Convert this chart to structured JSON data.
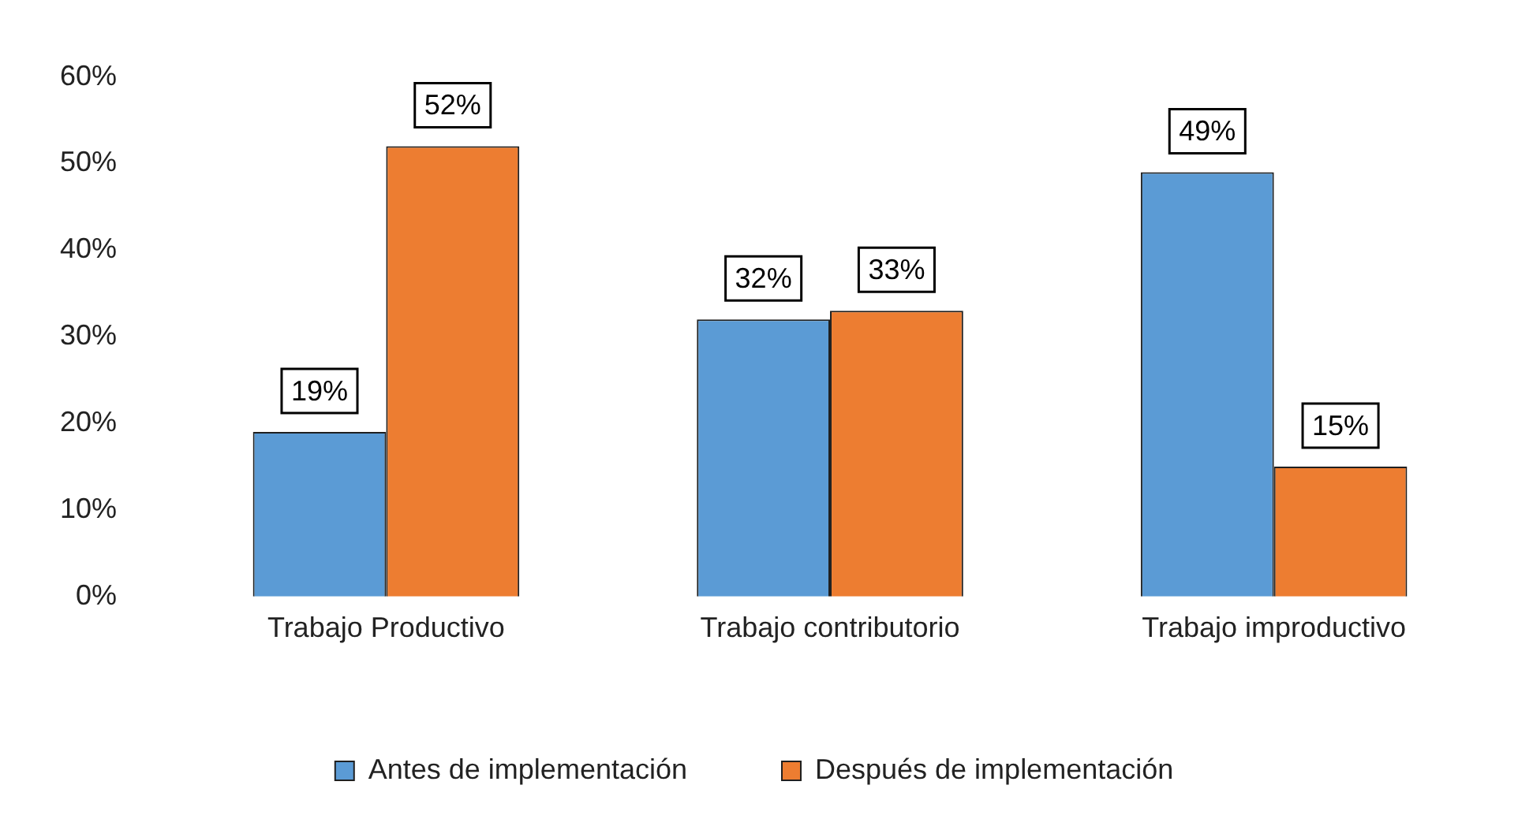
{
  "chart_data": {
    "type": "bar",
    "categories": [
      "Trabajo Productivo",
      "Trabajo contributorio",
      "Trabajo improductivo"
    ],
    "series": [
      {
        "name": "Antes de implementación",
        "color": "#5b9bd5",
        "values": [
          19,
          32,
          49
        ],
        "value_labels": [
          "19%",
          "32%",
          "49%"
        ]
      },
      {
        "name": "Después de implementación",
        "color": "#ed7d31",
        "values": [
          52,
          33,
          15
        ],
        "value_labels": [
          "52%",
          "33%",
          "15%"
        ]
      }
    ],
    "ylim": [
      0,
      60
    ],
    "yticks": [
      {
        "value": 0,
        "label": "0%"
      },
      {
        "value": 10,
        "label": "10%"
      },
      {
        "value": 20,
        "label": "20%"
      },
      {
        "value": 30,
        "label": "30%"
      },
      {
        "value": 40,
        "label": "40%"
      },
      {
        "value": 50,
        "label": "50%"
      },
      {
        "value": 60,
        "label": "60%"
      }
    ],
    "grid": false,
    "legend": "bottom"
  }
}
